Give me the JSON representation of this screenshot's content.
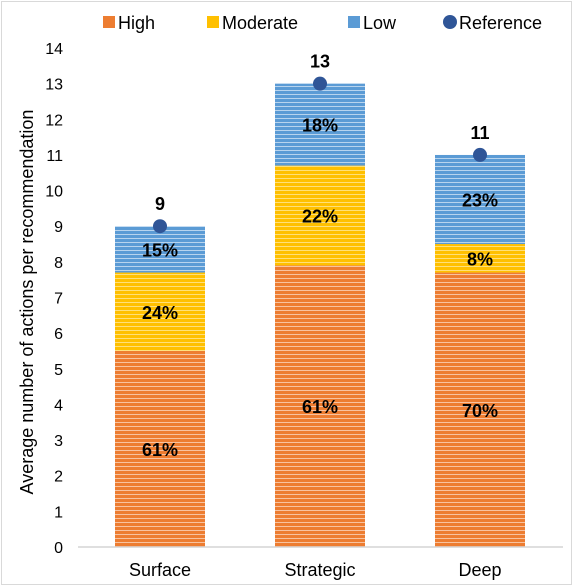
{
  "chart_data": {
    "type": "bar",
    "stacked": true,
    "categories": [
      "Surface",
      "Strategic",
      "Deep"
    ],
    "series": [
      {
        "name": "High",
        "color": "#ED7D31",
        "values": [
          5.5,
          7.9,
          7.7
        ],
        "labels": [
          "61%",
          "61%",
          "70%"
        ]
      },
      {
        "name": "Moderate",
        "color": "#FFC000",
        "values": [
          2.2,
          2.8,
          0.8
        ],
        "labels": [
          "24%",
          "22%",
          "8%"
        ]
      },
      {
        "name": "Low",
        "color": "#5B9BD5",
        "values": [
          1.3,
          2.3,
          2.5
        ],
        "labels": [
          "15%",
          "18%",
          "23%"
        ]
      }
    ],
    "reference": {
      "name": "Reference",
      "color": "#2F5597",
      "values": [
        9,
        13,
        11
      ],
      "labels": [
        "9",
        "13",
        "11"
      ]
    },
    "ylabel": "Average number of actions per recommendation",
    "xlabel": "",
    "ylim": [
      0,
      14
    ],
    "yticks": [
      0,
      1,
      2,
      3,
      4,
      5,
      6,
      7,
      8,
      9,
      10,
      11,
      12,
      13,
      14
    ],
    "grid": false,
    "legend_position": "top"
  }
}
